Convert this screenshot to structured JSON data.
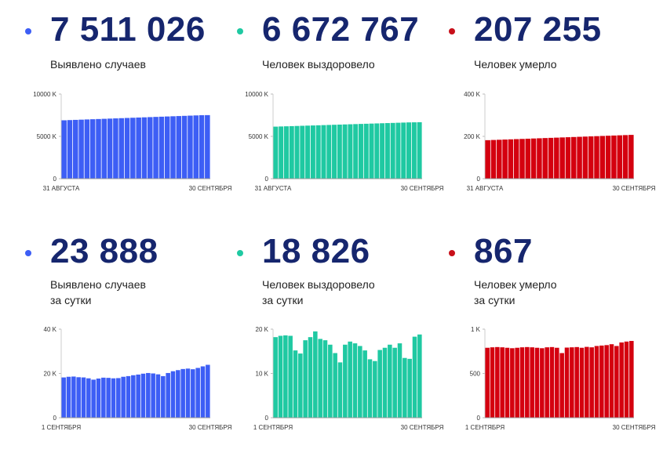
{
  "panels": [
    {
      "value": "7 511 026",
      "label_line1": "Выявлено случаев",
      "label_line2": "",
      "accent": "#3d5ef5",
      "dot_color": "#3d5ef5"
    },
    {
      "value": "6 672 767",
      "label_line1": "Человек выздоровело",
      "label_line2": "",
      "accent": "#1fc9a2",
      "dot_color": "#1fc9a2"
    },
    {
      "value": "207 255",
      "label_line1": "Человек умерло",
      "label_line2": "",
      "accent": "#d4000f",
      "dot_color": "#c8101a"
    },
    {
      "value": "23 888",
      "label_line1": "Выявлено случаев",
      "label_line2": "за сутки",
      "accent": "#3d5ef5",
      "dot_color": "#3d5ef5"
    },
    {
      "value": "18 826",
      "label_line1": "Человек выздоровело",
      "label_line2": "за сутки",
      "accent": "#1fc9a2",
      "dot_color": "#1fc9a2"
    },
    {
      "value": "867",
      "label_line1": "Человек умерло",
      "label_line2": "за сутки",
      "accent": "#d4000f",
      "dot_color": "#c8101a"
    }
  ],
  "chart_data": [
    {
      "type": "bar",
      "ylim": [
        0,
        10000
      ],
      "yticks": [
        {
          "v": 0,
          "label": "0"
        },
        {
          "v": 5000,
          "label": "5000 K"
        },
        {
          "v": 10000,
          "label": "10000 K"
        }
      ],
      "xlabel_start": "31 АВГУСТА",
      "xlabel_end": "30 СЕНТЯБРЯ",
      "values": [
        6900,
        6925,
        6950,
        6975,
        7000,
        7025,
        7050,
        7075,
        7100,
        7125,
        7150,
        7175,
        7200,
        7225,
        7250,
        7275,
        7300,
        7325,
        7350,
        7375,
        7400,
        7425,
        7450,
        7475,
        7500,
        7511
      ]
    },
    {
      "type": "bar",
      "ylim": [
        0,
        10000
      ],
      "yticks": [
        {
          "v": 0,
          "label": "0"
        },
        {
          "v": 5000,
          "label": "5000 K"
        },
        {
          "v": 10000,
          "label": "10000 K"
        }
      ],
      "xlabel_start": "31 АВГУСТА",
      "xlabel_end": "30 СЕНТЯБРЯ",
      "values": [
        6150,
        6170,
        6190,
        6210,
        6230,
        6250,
        6270,
        6290,
        6310,
        6330,
        6350,
        6370,
        6390,
        6410,
        6430,
        6450,
        6470,
        6490,
        6510,
        6530,
        6550,
        6570,
        6590,
        6610,
        6630,
        6650,
        6660,
        6673
      ]
    },
    {
      "type": "bar",
      "ylim": [
        0,
        400
      ],
      "yticks": [
        {
          "v": 0,
          "label": "0"
        },
        {
          "v": 200,
          "label": "200 K"
        },
        {
          "v": 400,
          "label": "400 K"
        }
      ],
      "xlabel_start": "31 АВГУСТА",
      "xlabel_end": "30 СЕНТЯБРЯ",
      "values": [
        182,
        183,
        184,
        185,
        186,
        187,
        188,
        189,
        190,
        191,
        192,
        193,
        194,
        195,
        196,
        197,
        198,
        199,
        200,
        201,
        202,
        203,
        204,
        205,
        206,
        207
      ]
    },
    {
      "type": "bar",
      "ylim": [
        0,
        40
      ],
      "yticks": [
        {
          "v": 0,
          "label": "0"
        },
        {
          "v": 20,
          "label": "20 K"
        },
        {
          "v": 40,
          "label": "40 K"
        }
      ],
      "xlabel_start": "1 СЕНТЯБРЯ",
      "xlabel_end": "30 СЕНТЯБРЯ",
      "values": [
        18.2,
        18.5,
        18.6,
        18.3,
        18.2,
        17.8,
        17.2,
        17.7,
        18.1,
        18.0,
        17.8,
        17.9,
        18.5,
        18.8,
        19.2,
        19.5,
        19.9,
        20.2,
        20.0,
        19.6,
        18.8,
        20.2,
        21.0,
        21.5,
        22.0,
        22.2,
        21.9,
        22.5,
        23.2,
        23.9
      ]
    },
    {
      "type": "bar",
      "ylim": [
        0,
        20
      ],
      "yticks": [
        {
          "v": 0,
          "label": "0"
        },
        {
          "v": 10,
          "label": "10 K"
        },
        {
          "v": 20,
          "label": "20 K"
        }
      ],
      "xlabel_start": "1 СЕНТЯБРЯ",
      "xlabel_end": "30 СЕНТЯБРЯ",
      "values": [
        18.2,
        18.5,
        18.6,
        18.5,
        15.2,
        14.5,
        17.5,
        18.2,
        19.5,
        17.8,
        17.5,
        16.5,
        14.6,
        12.5,
        16.5,
        17.2,
        16.8,
        16.2,
        15.2,
        13.2,
        12.8,
        15.3,
        15.8,
        16.5,
        15.8,
        16.8,
        13.5,
        13.3,
        18.3,
        18.8
      ]
    },
    {
      "type": "bar",
      "ylim": [
        0,
        1000
      ],
      "yticks": [
        {
          "v": 0,
          "label": "0"
        },
        {
          "v": 500,
          "label": "500"
        },
        {
          "v": 1000,
          "label": "1 K"
        }
      ],
      "xlabel_start": "1 СЕНТЯБРЯ",
      "xlabel_end": "30 СЕНТЯБРЯ",
      "values": [
        790,
        795,
        798,
        795,
        790,
        785,
        790,
        795,
        798,
        795,
        790,
        785,
        795,
        798,
        790,
        730,
        792,
        795,
        798,
        790,
        800,
        795,
        810,
        815,
        820,
        830,
        810,
        850,
        860,
        867
      ]
    }
  ]
}
